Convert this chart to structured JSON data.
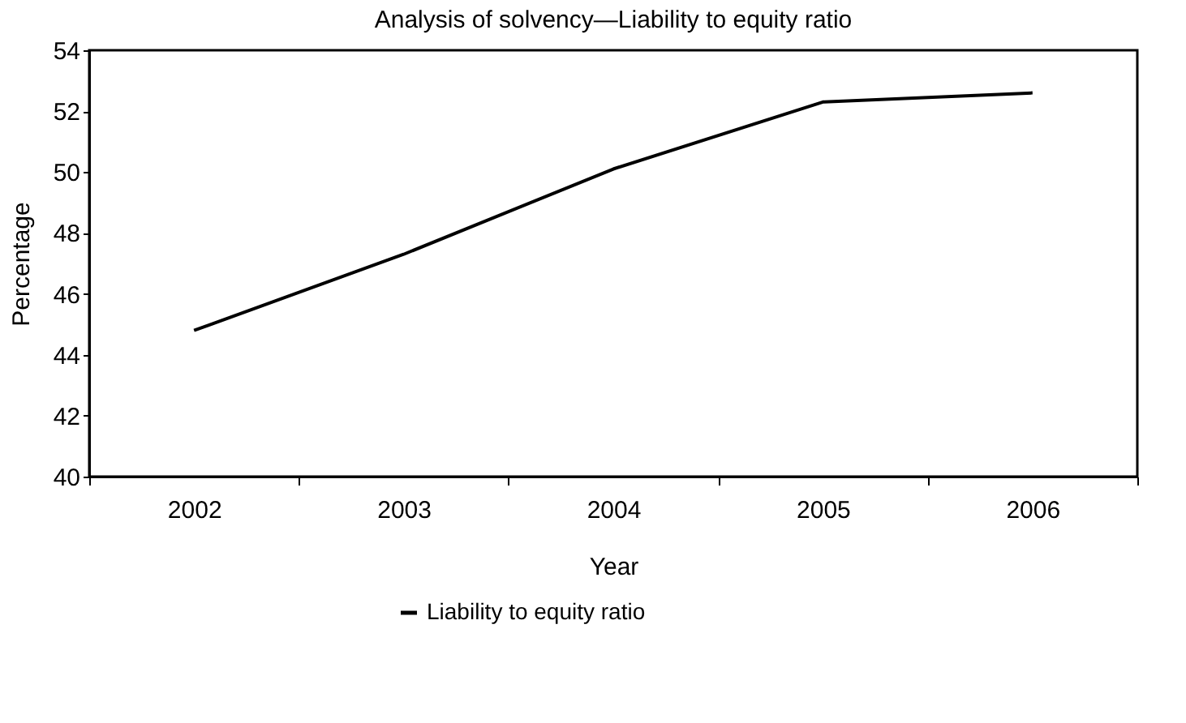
{
  "chart_data": {
    "type": "line",
    "title": "Analysis of solvency—Liability to equity ratio",
    "xlabel": "Year",
    "ylabel": "Percentage",
    "categories": [
      "2002",
      "2003",
      "2004",
      "2005",
      "2006"
    ],
    "series": [
      {
        "name": "Liability to equity ratio",
        "color": "#000000",
        "values": [
          44.8,
          47.3,
          50.1,
          52.3,
          52.6
        ]
      }
    ],
    "ylim": [
      40,
      54
    ],
    "yticks": [
      40,
      42,
      44,
      46,
      48,
      50,
      52,
      54
    ],
    "grid": false,
    "legend": "bottom",
    "marker": "none",
    "line_style": "solid"
  }
}
